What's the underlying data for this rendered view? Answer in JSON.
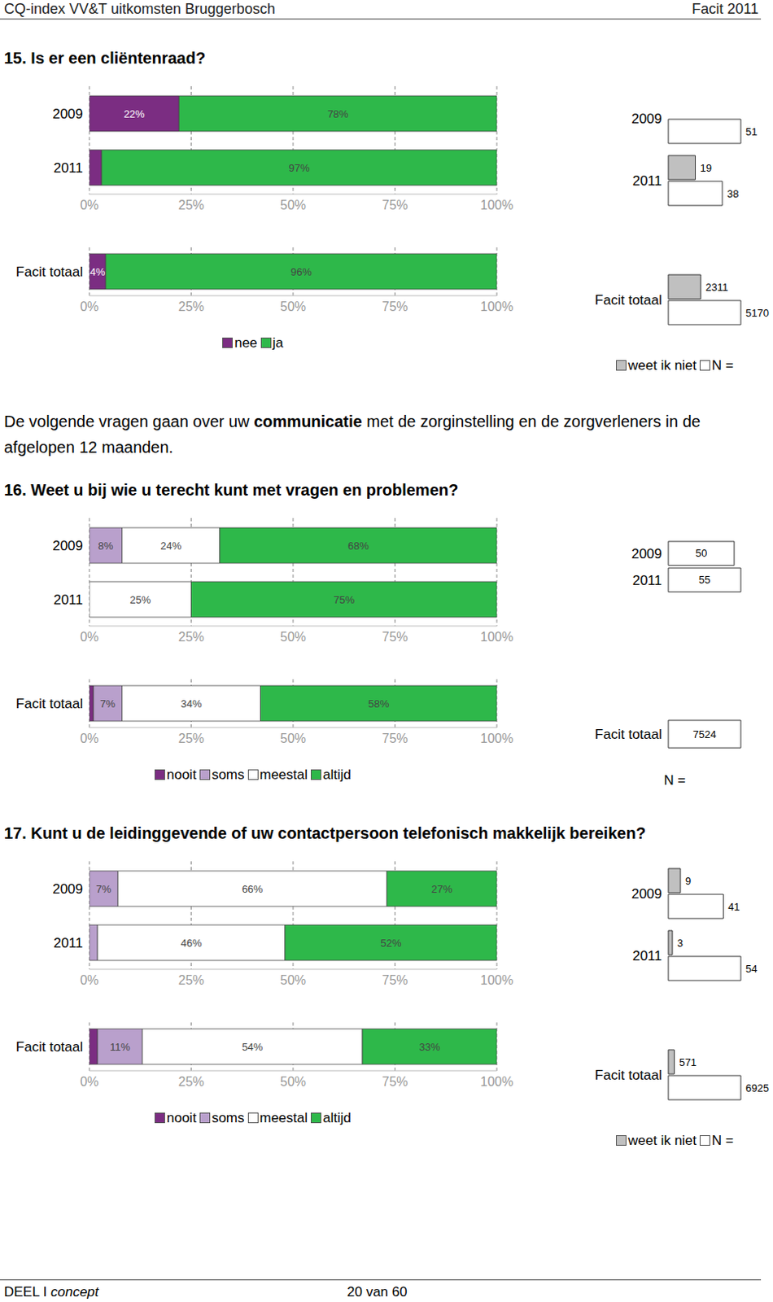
{
  "header": {
    "left": "CQ-index VV&T uitkomsten Bruggerbosch",
    "right": "Facit 2011"
  },
  "intro": {
    "before": "De volgende vragen gaan over uw ",
    "bold": "communicatie",
    "after": " met de zorginstelling en de zorgverleners in de afgelopen 12 maanden."
  },
  "chart_data": [
    {
      "type": "bar",
      "orientation": "horizontal",
      "stacked": true,
      "data_labels": true,
      "grid": true,
      "legend": "bottom",
      "title": "15. Is er een cliëntenraad?",
      "categories": [
        "2009",
        "2011",
        "Facit totaal"
      ],
      "xlim": [
        0,
        100
      ],
      "xticks": [
        {
          "value": 0,
          "label": "0%"
        },
        {
          "value": 25,
          "label": "25%"
        },
        {
          "value": 50,
          "label": "50%"
        },
        {
          "value": 75,
          "label": "75%"
        },
        {
          "value": 100,
          "label": "100%"
        }
      ],
      "series": [
        {
          "name": "nee",
          "color": "#7b2d82",
          "values": [
            22,
            3,
            4
          ],
          "value_labels": [
            "22%",
            null,
            "4%"
          ]
        },
        {
          "name": "ja",
          "color": "#2eb84a",
          "values": [
            78,
            97,
            96
          ],
          "value_labels": [
            "78%",
            "97%",
            "96%"
          ]
        }
      ]
    },
    {
      "type": "bar",
      "orientation": "horizontal",
      "data_labels": true,
      "tick_labels": "y",
      "legend": "bottom right",
      "categories": [
        "2009",
        "2011",
        "Facit totaal"
      ],
      "series": [
        {
          "name": "weet ik niet",
          "color": "#c0c0c0",
          "values": [
            null,
            19,
            2311
          ]
        },
        {
          "name": "N =",
          "color": "#ffffff",
          "values": [
            51,
            38,
            5170
          ]
        }
      ]
    },
    {
      "type": "bar",
      "orientation": "horizontal",
      "stacked": true,
      "data_labels": true,
      "grid": true,
      "legend": "bottom",
      "title": "16. Weet u bij wie u terecht kunt met vragen en problemen?",
      "categories": [
        "2009",
        "2011",
        "Facit totaal"
      ],
      "xlim": [
        0,
        100
      ],
      "xticks": [
        {
          "value": 0,
          "label": "0%"
        },
        {
          "value": 25,
          "label": "25%"
        },
        {
          "value": 50,
          "label": "50%"
        },
        {
          "value": 75,
          "label": "75%"
        },
        {
          "value": 100,
          "label": "100%"
        }
      ],
      "series": [
        {
          "name": "nooit",
          "color": "#7b2d82",
          "values": [
            0,
            0,
            1
          ],
          "value_labels": [
            null,
            null,
            null
          ]
        },
        {
          "name": "soms",
          "color": "#b9a0cc",
          "values": [
            8,
            0,
            7
          ],
          "value_labels": [
            "8%",
            null,
            "7%"
          ]
        },
        {
          "name": "meestal",
          "color": "#ffffff",
          "values": [
            24,
            25,
            34
          ],
          "value_labels": [
            "24%",
            "25%",
            "34%"
          ]
        },
        {
          "name": "altijd",
          "color": "#2eb84a",
          "values": [
            68,
            75,
            58
          ],
          "value_labels": [
            "68%",
            "75%",
            "58%"
          ]
        }
      ]
    },
    {
      "type": "bar",
      "orientation": "horizontal",
      "data_labels": true,
      "tick_labels": "y",
      "legend": "bottom right",
      "categories": [
        "2009",
        "2011",
        "Facit totaal"
      ],
      "series": [
        {
          "name": "N =",
          "color": "#ffffff",
          "values": [
            50,
            55,
            7524
          ]
        }
      ]
    },
    {
      "type": "bar",
      "orientation": "horizontal",
      "stacked": true,
      "data_labels": true,
      "grid": true,
      "legend": "bottom",
      "title": "17. Kunt u de leidinggevende of uw contactpersoon telefonisch makkelijk bereiken?",
      "categories": [
        "2009",
        "2011",
        "Facit totaal"
      ],
      "xlim": [
        0,
        100
      ],
      "xticks": [
        {
          "value": 0,
          "label": "0%"
        },
        {
          "value": 25,
          "label": "25%"
        },
        {
          "value": 50,
          "label": "50%"
        },
        {
          "value": 75,
          "label": "75%"
        },
        {
          "value": 100,
          "label": "100%"
        }
      ],
      "series": [
        {
          "name": "nooit",
          "color": "#7b2d82",
          "values": [
            0,
            0,
            2
          ],
          "value_labels": [
            null,
            null,
            null
          ]
        },
        {
          "name": "soms",
          "color": "#b9a0cc",
          "values": [
            7,
            2,
            11
          ],
          "value_labels": [
            "7%",
            null,
            "11%"
          ]
        },
        {
          "name": "meestal",
          "color": "#ffffff",
          "values": [
            66,
            46,
            54
          ],
          "value_labels": [
            "66%",
            "46%",
            "54%"
          ]
        },
        {
          "name": "altijd",
          "color": "#2eb84a",
          "values": [
            27,
            52,
            33
          ],
          "value_labels": [
            "27%",
            "52%",
            "33%"
          ]
        }
      ]
    },
    {
      "type": "bar",
      "orientation": "horizontal",
      "data_labels": true,
      "tick_labels": "y",
      "legend": "bottom right",
      "categories": [
        "2009",
        "2011",
        "Facit totaal"
      ],
      "series": [
        {
          "name": "weet ik niet",
          "color": "#c0c0c0",
          "values": [
            9,
            3,
            571
          ]
        },
        {
          "name": "N =",
          "color": "#ffffff",
          "values": [
            41,
            54,
            6925
          ]
        }
      ]
    }
  ],
  "footer": {
    "left": "DEEL I",
    "left_italic": "concept",
    "center": "20 van 60"
  }
}
